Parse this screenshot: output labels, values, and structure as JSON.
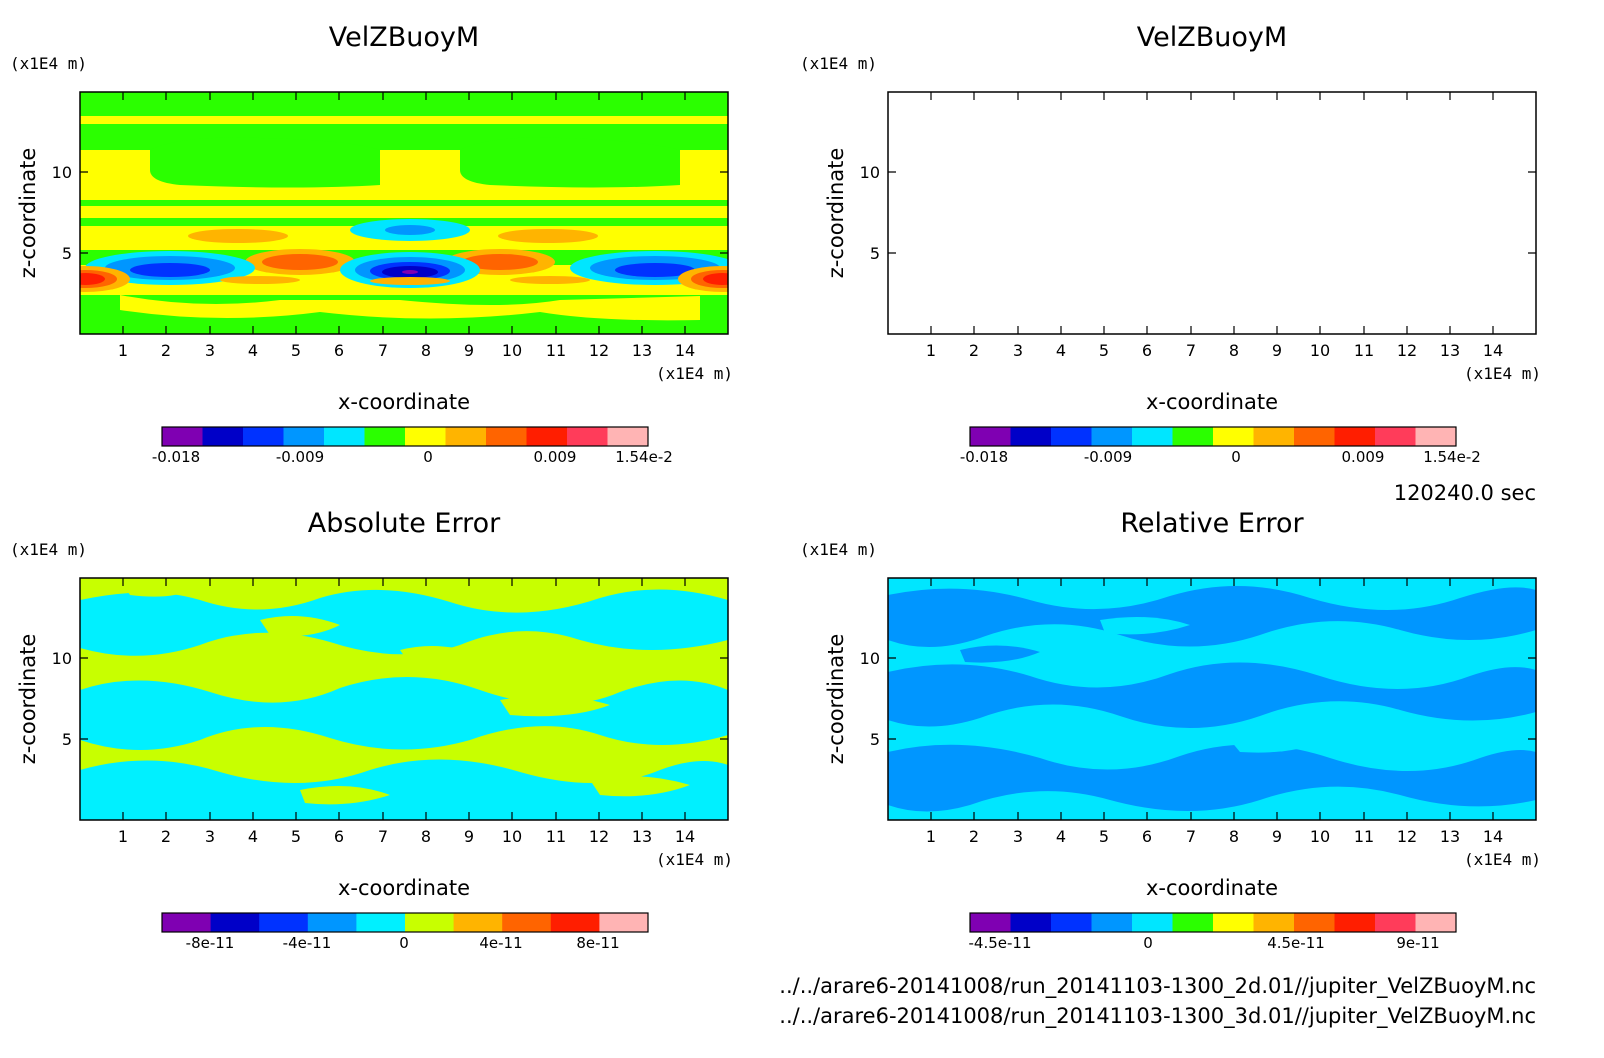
{
  "colors": {
    "rainbow": [
      "#7f00b2",
      "#0000c8",
      "#0032ff",
      "#0096ff",
      "#00e6ff",
      "#2bff00",
      "#ffff00",
      "#ffb400",
      "#ff6400",
      "#ff1e00",
      "#ff3c5a",
      "#ffb4b4"
    ],
    "error_abs": [
      "#7f00b2",
      "#0000c8",
      "#0032ff",
      "#0096ff",
      "#00f0ff",
      "#c8ff00",
      "#ffb400",
      "#ff6400",
      "#ff1e00",
      "#ffb4b4"
    ],
    "error_rel": [
      "#7f00b2",
      "#0000c8",
      "#0032ff",
      "#0096ff",
      "#00e6ff",
      "#2bff00",
      "#ffff00",
      "#ffb400",
      "#ff6400",
      "#ff1e00",
      "#ff3c5a",
      "#ffb4b4"
    ]
  },
  "time_label": "120240.0 sec",
  "footer": {
    "line1": "../../arare6-20141008/run_20141103-1300_2d.01//jupiter_VelZBuoyM.nc",
    "line2": "../../arare6-20141008/run_20141103-1300_3d.01//jupiter_VelZBuoyM.nc"
  },
  "chart_data": [
    {
      "type": "heatmap",
      "title": "VelZBuoyM",
      "xlabel": "x-coordinate",
      "ylabel": "z-coordinate",
      "x_unit": "(x1E4 m)",
      "y_unit": "(x1E4 m)",
      "xlim": [
        0,
        15
      ],
      "ylim": [
        0,
        15
      ],
      "x_ticks": [
        "1",
        "2",
        "3",
        "4",
        "5",
        "6",
        "7",
        "8",
        "9",
        "10",
        "11",
        "12",
        "13",
        "14"
      ],
      "y_ticks": [
        "5",
        "10"
      ],
      "colorbar_labels": [
        "-0.018",
        "-0.009",
        "0",
        "0.009",
        "1.54e-2"
      ]
    },
    {
      "type": "heatmap",
      "title": "VelZBuoyM",
      "xlabel": "x-coordinate",
      "ylabel": "z-coordinate",
      "x_unit": "(x1E4 m)",
      "y_unit": "(x1E4 m)",
      "xlim": [
        0,
        15
      ],
      "ylim": [
        0,
        15
      ],
      "x_ticks": [
        "1",
        "2",
        "3",
        "4",
        "5",
        "6",
        "7",
        "8",
        "9",
        "10",
        "11",
        "12",
        "13",
        "14"
      ],
      "y_ticks": [
        "5",
        "10"
      ],
      "colorbar_labels": [
        "-0.018",
        "-0.009",
        "0",
        "0.009",
        "1.54e-2"
      ]
    },
    {
      "type": "heatmap",
      "title": "Absolute Error",
      "xlabel": "x-coordinate",
      "ylabel": "z-coordinate",
      "x_unit": "(x1E4 m)",
      "y_unit": "(x1E4 m)",
      "xlim": [
        0,
        15
      ],
      "ylim": [
        0,
        15
      ],
      "x_ticks": [
        "1",
        "2",
        "3",
        "4",
        "5",
        "6",
        "7",
        "8",
        "9",
        "10",
        "11",
        "12",
        "13",
        "14"
      ],
      "y_ticks": [
        "5",
        "10"
      ],
      "colorbar_labels": [
        "-8e-11",
        "-4e-11",
        "0",
        "4e-11",
        "8e-11"
      ]
    },
    {
      "type": "heatmap",
      "title": "Relative Error",
      "xlabel": "x-coordinate",
      "ylabel": "z-coordinate",
      "x_unit": "(x1E4 m)",
      "y_unit": "(x1E4 m)",
      "xlim": [
        0,
        15
      ],
      "ylim": [
        0,
        15
      ],
      "x_ticks": [
        "1",
        "2",
        "3",
        "4",
        "5",
        "6",
        "7",
        "8",
        "9",
        "10",
        "11",
        "12",
        "13",
        "14"
      ],
      "y_ticks": [
        "5",
        "10"
      ],
      "colorbar_labels": [
        "-4.5e-11",
        "0",
        "4.5e-11",
        "9e-11"
      ]
    }
  ]
}
